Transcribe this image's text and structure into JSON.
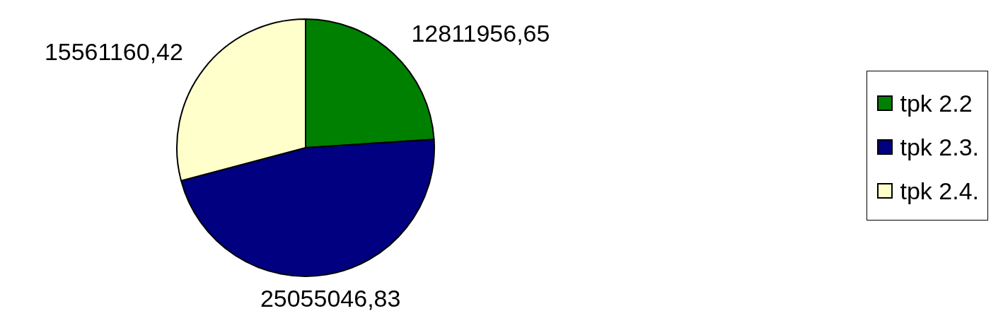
{
  "chart_data": {
    "type": "pie",
    "categories": [
      "tpk 2.2",
      "tpk 2.3.",
      "tpk 2.4."
    ],
    "values": [
      12811956.65,
      25055046.83,
      15561160.42
    ],
    "colors": [
      "#008000",
      "#000080",
      "#ffffcc"
    ],
    "value_labels": [
      "12811956,65",
      "25055046,83",
      "15561160,42"
    ],
    "legend": "right"
  }
}
